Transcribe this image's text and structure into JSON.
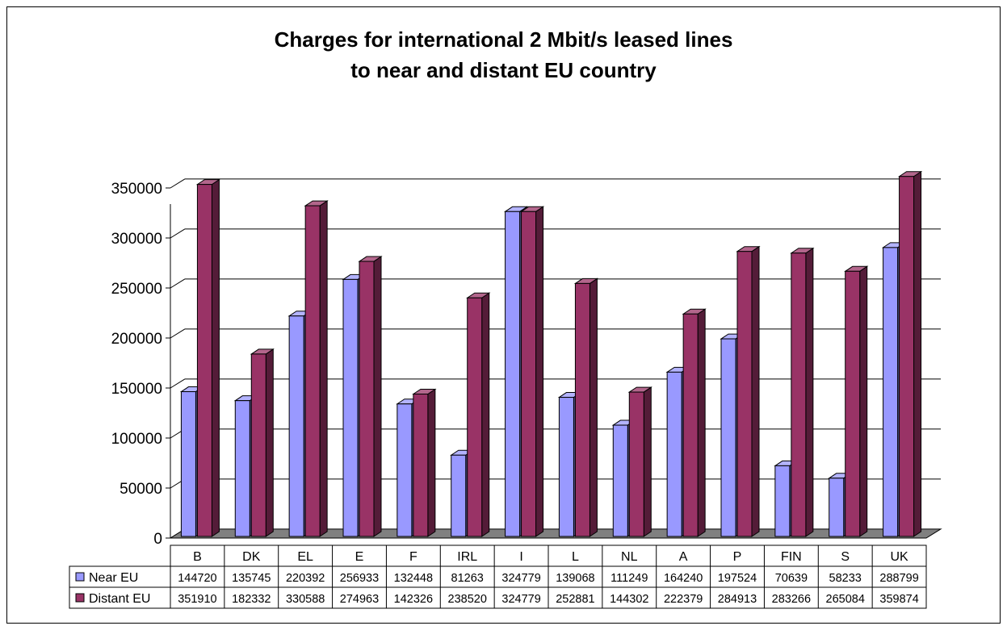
{
  "chart_data": {
    "type": "bar",
    "title_lines": [
      "Charges for international 2 Mbit/s leased lines",
      "to near and distant EU country"
    ],
    "xlabel": "",
    "ylabel": "",
    "ylim": [
      0,
      350000
    ],
    "yticks": [
      0,
      50000,
      100000,
      150000,
      200000,
      250000,
      300000,
      350000
    ],
    "ytick_labels": [
      "0",
      "50000",
      "100000",
      "150000",
      "200000",
      "250000",
      "300000",
      "350000"
    ],
    "grid": true,
    "legend": "data-table",
    "categories": [
      "B",
      "DK",
      "EL",
      "E",
      "F",
      "IRL",
      "I",
      "L",
      "NL",
      "A",
      "P",
      "FIN",
      "S",
      "UK"
    ],
    "series": [
      {
        "name": "Near EU",
        "color": "#9999FF",
        "values": [
          144720,
          135745,
          220392,
          256933,
          132448,
          81263,
          324779,
          139068,
          111249,
          164240,
          197524,
          70639,
          58233,
          288799
        ],
        "labels": [
          "144720",
          "135745",
          "220392",
          "256933",
          "132448",
          "81263",
          "324779",
          "139068",
          "111249",
          "164240",
          "197524",
          "70639",
          "58233",
          "288799"
        ]
      },
      {
        "name": "Distant EU",
        "color": "#993366",
        "values": [
          351910,
          182332,
          330588,
          274963,
          142326,
          238520,
          324779,
          252881,
          144302,
          222379,
          284913,
          283266,
          265084,
          359874
        ],
        "labels": [
          "351910",
          "182332",
          "330588",
          "274963",
          "142326",
          "238520",
          "324779",
          "252881",
          "144302",
          "222379",
          "284913",
          "283266",
          "265084",
          "359874"
        ]
      }
    ]
  }
}
